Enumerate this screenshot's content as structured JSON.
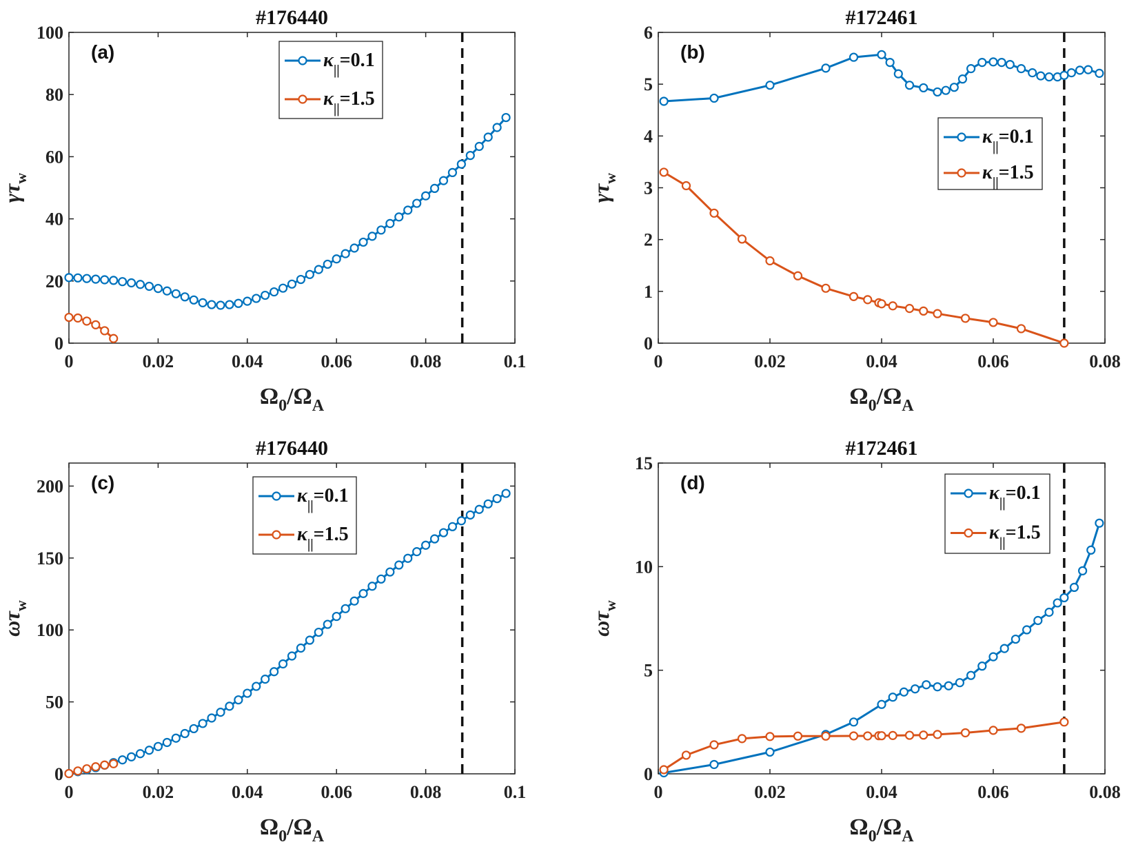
{
  "chart_data": [
    {
      "type": "line",
      "panel_label": "(a)",
      "title": "#176440",
      "xlabel": {
        "base": "Ω",
        "sub0": "0",
        "mid": "/Ω",
        "sub1": "A"
      },
      "ylabel": {
        "base": "γτ",
        "sub": "w"
      },
      "xlim": [
        0,
        0.1
      ],
      "ylim": [
        0,
        100
      ],
      "xticks": [
        0,
        0.02,
        0.04,
        0.06,
        0.08,
        0.1
      ],
      "xtick_labels": [
        "0",
        "0.02",
        "0.04",
        "0.06",
        "0.08",
        "0.1"
      ],
      "yticks": [
        0,
        20,
        40,
        60,
        80,
        100
      ],
      "ytick_labels": [
        "0",
        "20",
        "40",
        "60",
        "80",
        "100"
      ],
      "vline_x": 0.0882,
      "legend_position": "top-center",
      "series": [
        {
          "legend": {
            "base": "κ",
            "sub": "||",
            "value": "=0.1"
          },
          "color": "#0072BD",
          "x": [
            0,
            0.002,
            0.004,
            0.006,
            0.008,
            0.01,
            0.012,
            0.014,
            0.016,
            0.018,
            0.02,
            0.022,
            0.024,
            0.026,
            0.028,
            0.03,
            0.032,
            0.034,
            0.036,
            0.038,
            0.04,
            0.042,
            0.044,
            0.046,
            0.048,
            0.05,
            0.052,
            0.054,
            0.056,
            0.058,
            0.06,
            0.062,
            0.064,
            0.066,
            0.068,
            0.07,
            0.072,
            0.074,
            0.076,
            0.078,
            0.08,
            0.082,
            0.084,
            0.086,
            0.088,
            0.09,
            0.092,
            0.094,
            0.096,
            0.098
          ],
          "y": [
            21.1,
            21.0,
            20.8,
            20.6,
            20.4,
            20.2,
            19.8,
            19.4,
            18.9,
            18.3,
            17.6,
            16.8,
            15.9,
            14.9,
            13.9,
            13.0,
            12.4,
            12.2,
            12.4,
            12.8,
            13.5,
            14.4,
            15.4,
            16.5,
            17.7,
            19.0,
            20.5,
            22.1,
            23.7,
            25.4,
            27.1,
            28.8,
            30.6,
            32.5,
            34.4,
            36.4,
            38.5,
            40.6,
            42.8,
            45.0,
            47.4,
            49.8,
            52.3,
            54.9,
            57.6,
            60.4,
            63.3,
            66.3,
            69.4,
            72.6
          ]
        },
        {
          "legend": {
            "base": "κ",
            "sub": "||",
            "value": "=1.5"
          },
          "color": "#D95319",
          "x": [
            0,
            0.002,
            0.004,
            0.006,
            0.008,
            0.01
          ],
          "y": [
            8.3,
            8.1,
            7.1,
            5.9,
            4.0,
            1.5
          ]
        }
      ]
    },
    {
      "type": "line",
      "panel_label": "(b)",
      "title": "#172461",
      "xlabel": {
        "base": "Ω",
        "sub0": "0",
        "mid": "/Ω",
        "sub1": "A"
      },
      "ylabel": {
        "base": "γτ",
        "sub": "w"
      },
      "xlim": [
        0,
        0.08
      ],
      "ylim": [
        0,
        6
      ],
      "xticks": [
        0,
        0.02,
        0.04,
        0.06,
        0.08
      ],
      "xtick_labels": [
        "0",
        "0.02",
        "0.04",
        "0.06",
        "0.08"
      ],
      "yticks": [
        0,
        1,
        2,
        3,
        4,
        5,
        6
      ],
      "ytick_labels": [
        "0",
        "1",
        "2",
        "3",
        "4",
        "5",
        "6"
      ],
      "vline_x": 0.0727,
      "legend_position": "center-right",
      "series": [
        {
          "legend": {
            "base": "κ",
            "sub": "||",
            "value": "=0.1"
          },
          "color": "#0072BD",
          "x": [
            0.001,
            0.01,
            0.02,
            0.03,
            0.035,
            0.04,
            0.0415,
            0.043,
            0.045,
            0.0475,
            0.05,
            0.0515,
            0.053,
            0.0545,
            0.056,
            0.058,
            0.06,
            0.0615,
            0.063,
            0.065,
            0.067,
            0.0685,
            0.07,
            0.0715,
            0.0727,
            0.074,
            0.0755,
            0.077,
            0.079
          ],
          "y": [
            4.67,
            4.73,
            4.98,
            5.31,
            5.52,
            5.57,
            5.42,
            5.2,
            4.98,
            4.93,
            4.85,
            4.88,
            4.94,
            5.1,
            5.3,
            5.42,
            5.43,
            5.42,
            5.38,
            5.3,
            5.22,
            5.16,
            5.14,
            5.14,
            5.17,
            5.22,
            5.27,
            5.28,
            5.21
          ]
        },
        {
          "legend": {
            "base": "κ",
            "sub": "||",
            "value": "=1.5"
          },
          "color": "#D95319",
          "x": [
            0.001,
            0.005,
            0.01,
            0.015,
            0.02,
            0.025,
            0.03,
            0.035,
            0.0375,
            0.0395,
            0.04,
            0.042,
            0.045,
            0.0475,
            0.05,
            0.055,
            0.06,
            0.065,
            0.0727
          ],
          "y": [
            3.3,
            3.04,
            2.51,
            2.01,
            1.59,
            1.3,
            1.06,
            0.9,
            0.84,
            0.78,
            0.76,
            0.72,
            0.67,
            0.62,
            0.57,
            0.48,
            0.4,
            0.28,
            0.0
          ]
        }
      ]
    },
    {
      "type": "line",
      "panel_label": "(c)",
      "title": "#176440",
      "xlabel": {
        "base": "Ω",
        "sub0": "0",
        "mid": "/Ω",
        "sub1": "A"
      },
      "ylabel": {
        "base": "ωτ",
        "sub": "w"
      },
      "xlim": [
        0,
        0.1
      ],
      "ylim": [
        0,
        216
      ],
      "xticks": [
        0,
        0.02,
        0.04,
        0.06,
        0.08,
        0.1
      ],
      "xtick_labels": [
        "0",
        "0.02",
        "0.04",
        "0.06",
        "0.08",
        "0.1"
      ],
      "yticks": [
        0,
        50,
        100,
        150,
        200
      ],
      "ytick_labels": [
        "0",
        "50",
        "100",
        "150",
        "200"
      ],
      "vline_x": 0.0882,
      "legend_position": "top-center",
      "series": [
        {
          "legend": {
            "base": "κ",
            "sub": "||",
            "value": "=0.1"
          },
          "color": "#0072BD",
          "x": [
            0,
            0.002,
            0.004,
            0.006,
            0.008,
            0.01,
            0.012,
            0.014,
            0.016,
            0.018,
            0.02,
            0.022,
            0.024,
            0.026,
            0.028,
            0.03,
            0.032,
            0.034,
            0.036,
            0.038,
            0.04,
            0.042,
            0.044,
            0.046,
            0.048,
            0.05,
            0.052,
            0.054,
            0.056,
            0.058,
            0.06,
            0.062,
            0.064,
            0.066,
            0.068,
            0.07,
            0.072,
            0.074,
            0.076,
            0.078,
            0.08,
            0.082,
            0.084,
            0.086,
            0.088,
            0.09,
            0.092,
            0.094,
            0.096,
            0.098
          ],
          "y": [
            0.2,
            1.5,
            2.8,
            4.3,
            6.0,
            7.8,
            9.7,
            11.8,
            14.0,
            16.4,
            19.0,
            21.8,
            24.8,
            28.0,
            31.4,
            35.0,
            38.8,
            42.8,
            47.0,
            51.4,
            56.0,
            60.8,
            65.8,
            71.0,
            76.4,
            81.9,
            87.4,
            92.9,
            98.4,
            103.9,
            109.4,
            114.8,
            120.1,
            125.3,
            130.4,
            135.4,
            140.3,
            145.1,
            149.8,
            154.4,
            158.9,
            163.3,
            167.6,
            171.8,
            175.9,
            179.9,
            183.8,
            187.6,
            191.3,
            194.9
          ]
        },
        {
          "legend": {
            "base": "κ",
            "sub": "||",
            "value": "=1.5"
          },
          "color": "#D95319",
          "x": [
            0,
            0.002,
            0.004,
            0.006,
            0.008,
            0.01
          ],
          "y": [
            0.2,
            2.0,
            3.5,
            4.9,
            6.1,
            7.0
          ]
        }
      ]
    },
    {
      "type": "line",
      "panel_label": "(d)",
      "title": "#172461",
      "xlabel": {
        "base": "Ω",
        "sub0": "0",
        "mid": "/Ω",
        "sub1": "A"
      },
      "ylabel": {
        "base": "ωτ",
        "sub": "w"
      },
      "xlim": [
        0,
        0.08
      ],
      "ylim": [
        0,
        15
      ],
      "xticks": [
        0,
        0.02,
        0.04,
        0.06,
        0.08
      ],
      "xtick_labels": [
        "0",
        "0.02",
        "0.04",
        "0.06",
        "0.08"
      ],
      "yticks": [
        0,
        5,
        10,
        15
      ],
      "ytick_labels": [
        "0",
        "5",
        "10",
        "15"
      ],
      "vline_x": 0.0727,
      "legend_position": "top-right",
      "series": [
        {
          "legend": {
            "base": "κ",
            "sub": "||",
            "value": "=0.1"
          },
          "color": "#0072BD",
          "x": [
            0.001,
            0.01,
            0.02,
            0.03,
            0.035,
            0.04,
            0.042,
            0.044,
            0.046,
            0.048,
            0.05,
            0.052,
            0.054,
            0.056,
            0.058,
            0.06,
            0.062,
            0.064,
            0.066,
            0.068,
            0.07,
            0.0715,
            0.0727,
            0.0745,
            0.076,
            0.0775,
            0.079
          ],
          "y": [
            0.05,
            0.45,
            1.05,
            1.9,
            2.5,
            3.35,
            3.7,
            3.95,
            4.1,
            4.3,
            4.2,
            4.25,
            4.4,
            4.75,
            5.2,
            5.65,
            6.05,
            6.5,
            6.95,
            7.4,
            7.8,
            8.25,
            8.5,
            9.0,
            9.8,
            10.8,
            12.1
          ]
        },
        {
          "legend": {
            "base": "κ",
            "sub": "||",
            "value": "=1.5"
          },
          "color": "#D95319",
          "x": [
            0.001,
            0.005,
            0.01,
            0.015,
            0.02,
            0.025,
            0.03,
            0.035,
            0.0375,
            0.0395,
            0.04,
            0.042,
            0.045,
            0.0475,
            0.05,
            0.055,
            0.06,
            0.065,
            0.0727
          ],
          "y": [
            0.2,
            0.9,
            1.4,
            1.7,
            1.8,
            1.82,
            1.82,
            1.83,
            1.83,
            1.84,
            1.84,
            1.85,
            1.86,
            1.87,
            1.9,
            1.98,
            2.1,
            2.2,
            2.5
          ]
        }
      ]
    }
  ]
}
